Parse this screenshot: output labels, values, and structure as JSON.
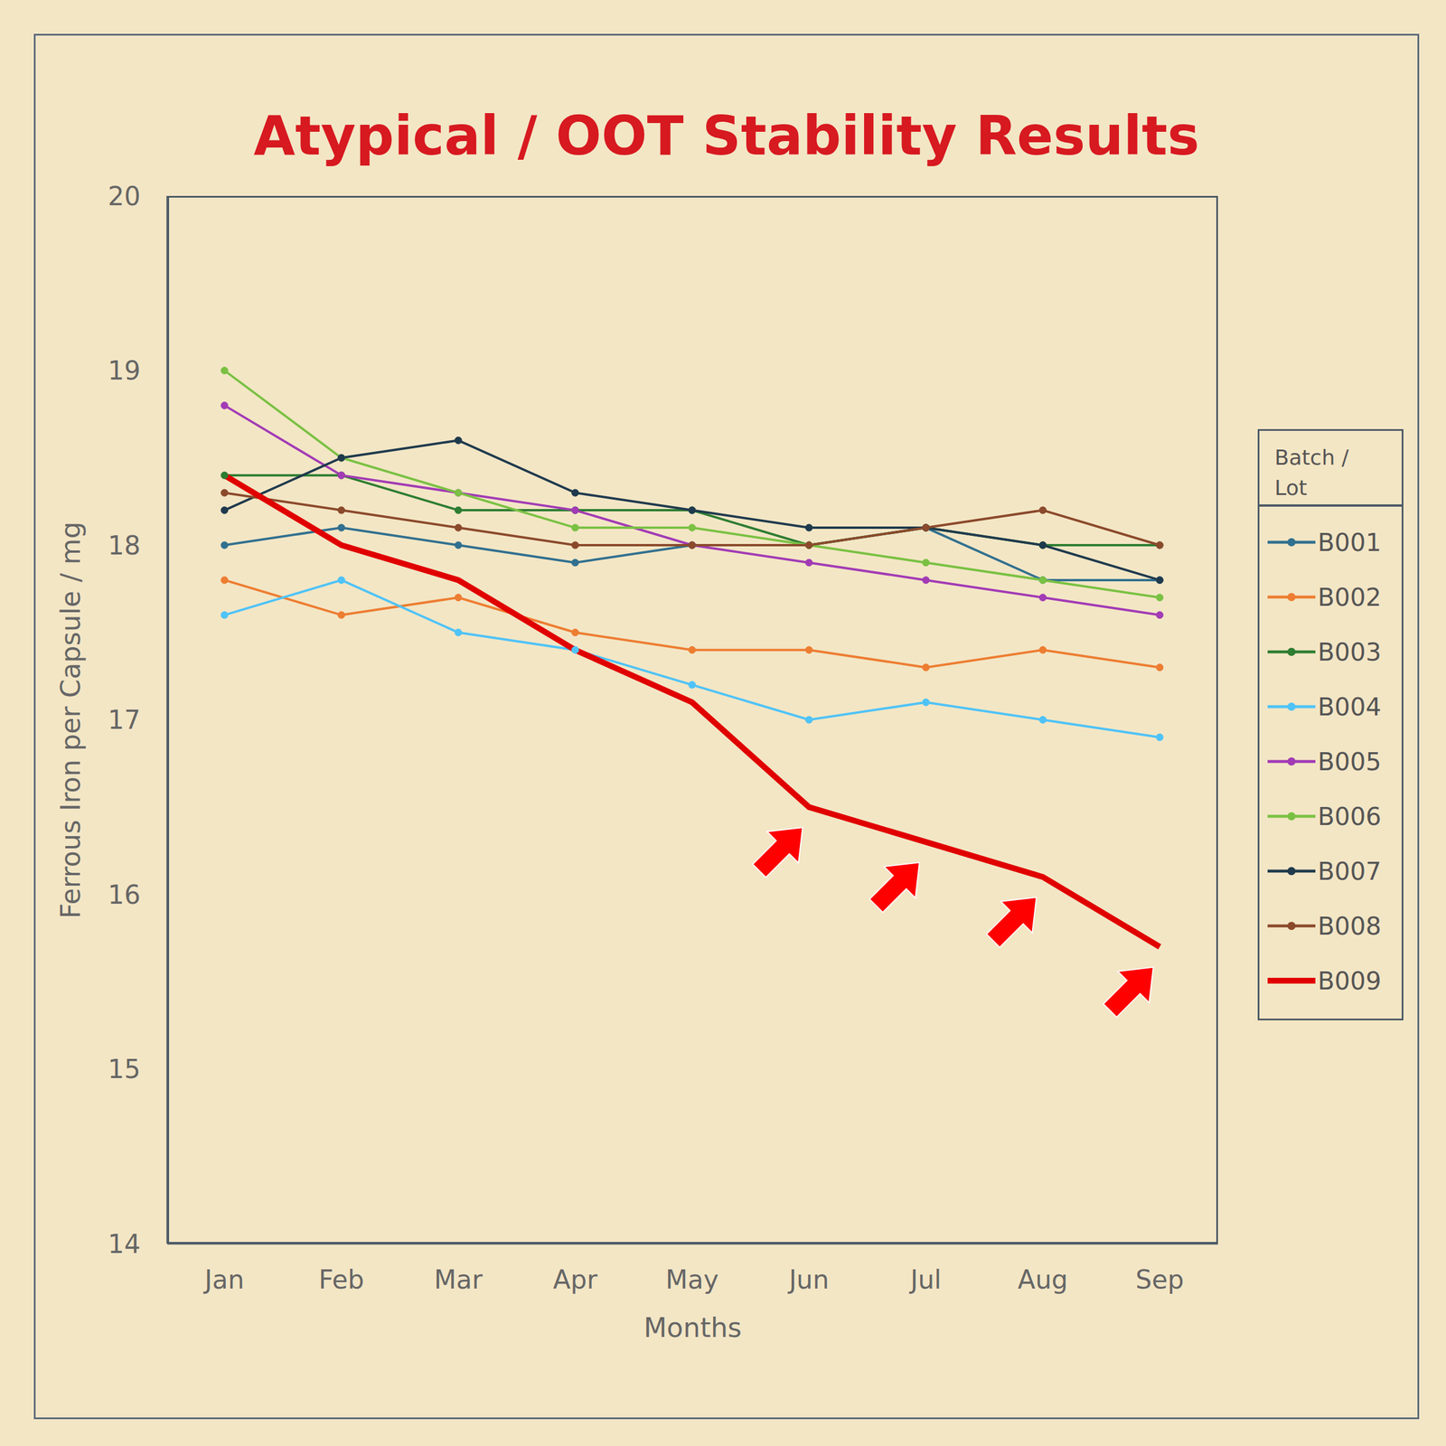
{
  "chart_data": {
    "type": "line",
    "title": "Atypical / OOT Stability Results",
    "x_label": "Months",
    "y_label": "Ferrous Iron per Capsule / mg",
    "legend_title": "Batch / Lot",
    "categories": [
      "Jan",
      "Feb",
      "Mar",
      "Apr",
      "May",
      "Jun",
      "Jul",
      "Aug",
      "Sep"
    ],
    "ylim": [
      14,
      20
    ],
    "yticks": [
      14,
      15,
      16,
      17,
      18,
      19,
      20
    ],
    "grid": false,
    "legend": "right",
    "series": [
      {
        "name": "B001",
        "color": "#31708f",
        "marker": "circle",
        "values": [
          18.0,
          18.1,
          18.0,
          17.9,
          18.0,
          18.0,
          18.1,
          17.8,
          17.8
        ]
      },
      {
        "name": "B002",
        "color": "#ed7d31",
        "marker": "circle",
        "values": [
          17.8,
          17.6,
          17.7,
          17.5,
          17.4,
          17.4,
          17.3,
          17.4,
          17.3
        ]
      },
      {
        "name": "B003",
        "color": "#2e7d32",
        "marker": "circle",
        "values": [
          18.4,
          18.4,
          18.2,
          18.2,
          18.2,
          18.0,
          18.1,
          18.0,
          18.0
        ]
      },
      {
        "name": "B004",
        "color": "#4fc3f7",
        "marker": "circle",
        "values": [
          17.6,
          17.8,
          17.5,
          17.4,
          17.2,
          17.0,
          17.1,
          17.0,
          16.9
        ]
      },
      {
        "name": "B005",
        "color": "#a23bb5",
        "marker": "circle",
        "values": [
          18.8,
          18.4,
          18.3,
          18.2,
          18.0,
          17.9,
          17.8,
          17.7,
          17.6
        ]
      },
      {
        "name": "B006",
        "color": "#7ac143",
        "marker": "circle",
        "values": [
          19.0,
          18.5,
          18.3,
          18.1,
          18.1,
          18.0,
          17.9,
          17.8,
          17.7
        ]
      },
      {
        "name": "B007",
        "color": "#1f3a4d",
        "marker": "circle",
        "values": [
          18.2,
          18.5,
          18.6,
          18.3,
          18.2,
          18.1,
          18.1,
          18.0,
          17.8
        ]
      },
      {
        "name": "B008",
        "color": "#8b4a2b",
        "marker": "circle",
        "values": [
          18.3,
          18.2,
          18.1,
          18.0,
          18.0,
          18.0,
          18.1,
          18.2,
          18.0
        ]
      },
      {
        "name": "B009",
        "color": "#e00000",
        "marker": "none",
        "values": [
          18.4,
          18.0,
          17.8,
          17.4,
          17.1,
          16.5,
          16.3,
          16.1,
          15.7
        ]
      }
    ]
  }
}
